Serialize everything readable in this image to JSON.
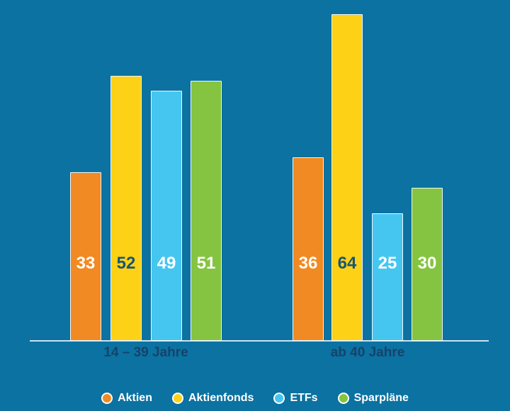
{
  "colors": {
    "background": "#0b72a1",
    "axis_line": "#c7e3f0",
    "group_label_text": "#16436a",
    "bar_border": "#edf6fa",
    "legend_text": "#ffffff"
  },
  "chart_data": {
    "type": "bar",
    "categories": [
      "14 – 39 Jahre",
      "ab 40 Jahre"
    ],
    "series": [
      {
        "name": "Aktien",
        "color": "#f18a23",
        "value_label_color": "#ffffff",
        "values": [
          33,
          36
        ]
      },
      {
        "name": "Aktienfonds",
        "color": "#fdd116",
        "value_label_color": "#175672",
        "values": [
          52,
          64
        ]
      },
      {
        "name": "ETFs",
        "color": "#45c6f1",
        "value_label_color": "#ffffff",
        "values": [
          49,
          25
        ]
      },
      {
        "name": "Sparpläne",
        "color": "#85c441",
        "value_label_color": "#ffffff",
        "values": [
          51,
          30
        ]
      }
    ],
    "value_labels": [
      [
        "33",
        "52",
        "49",
        "51"
      ],
      [
        "36",
        "64",
        "25",
        "30"
      ]
    ],
    "title": "",
    "xlabel": "",
    "ylabel": "",
    "ylim": [
      0,
      66
    ],
    "grid": false,
    "legend_position": "bottom"
  }
}
